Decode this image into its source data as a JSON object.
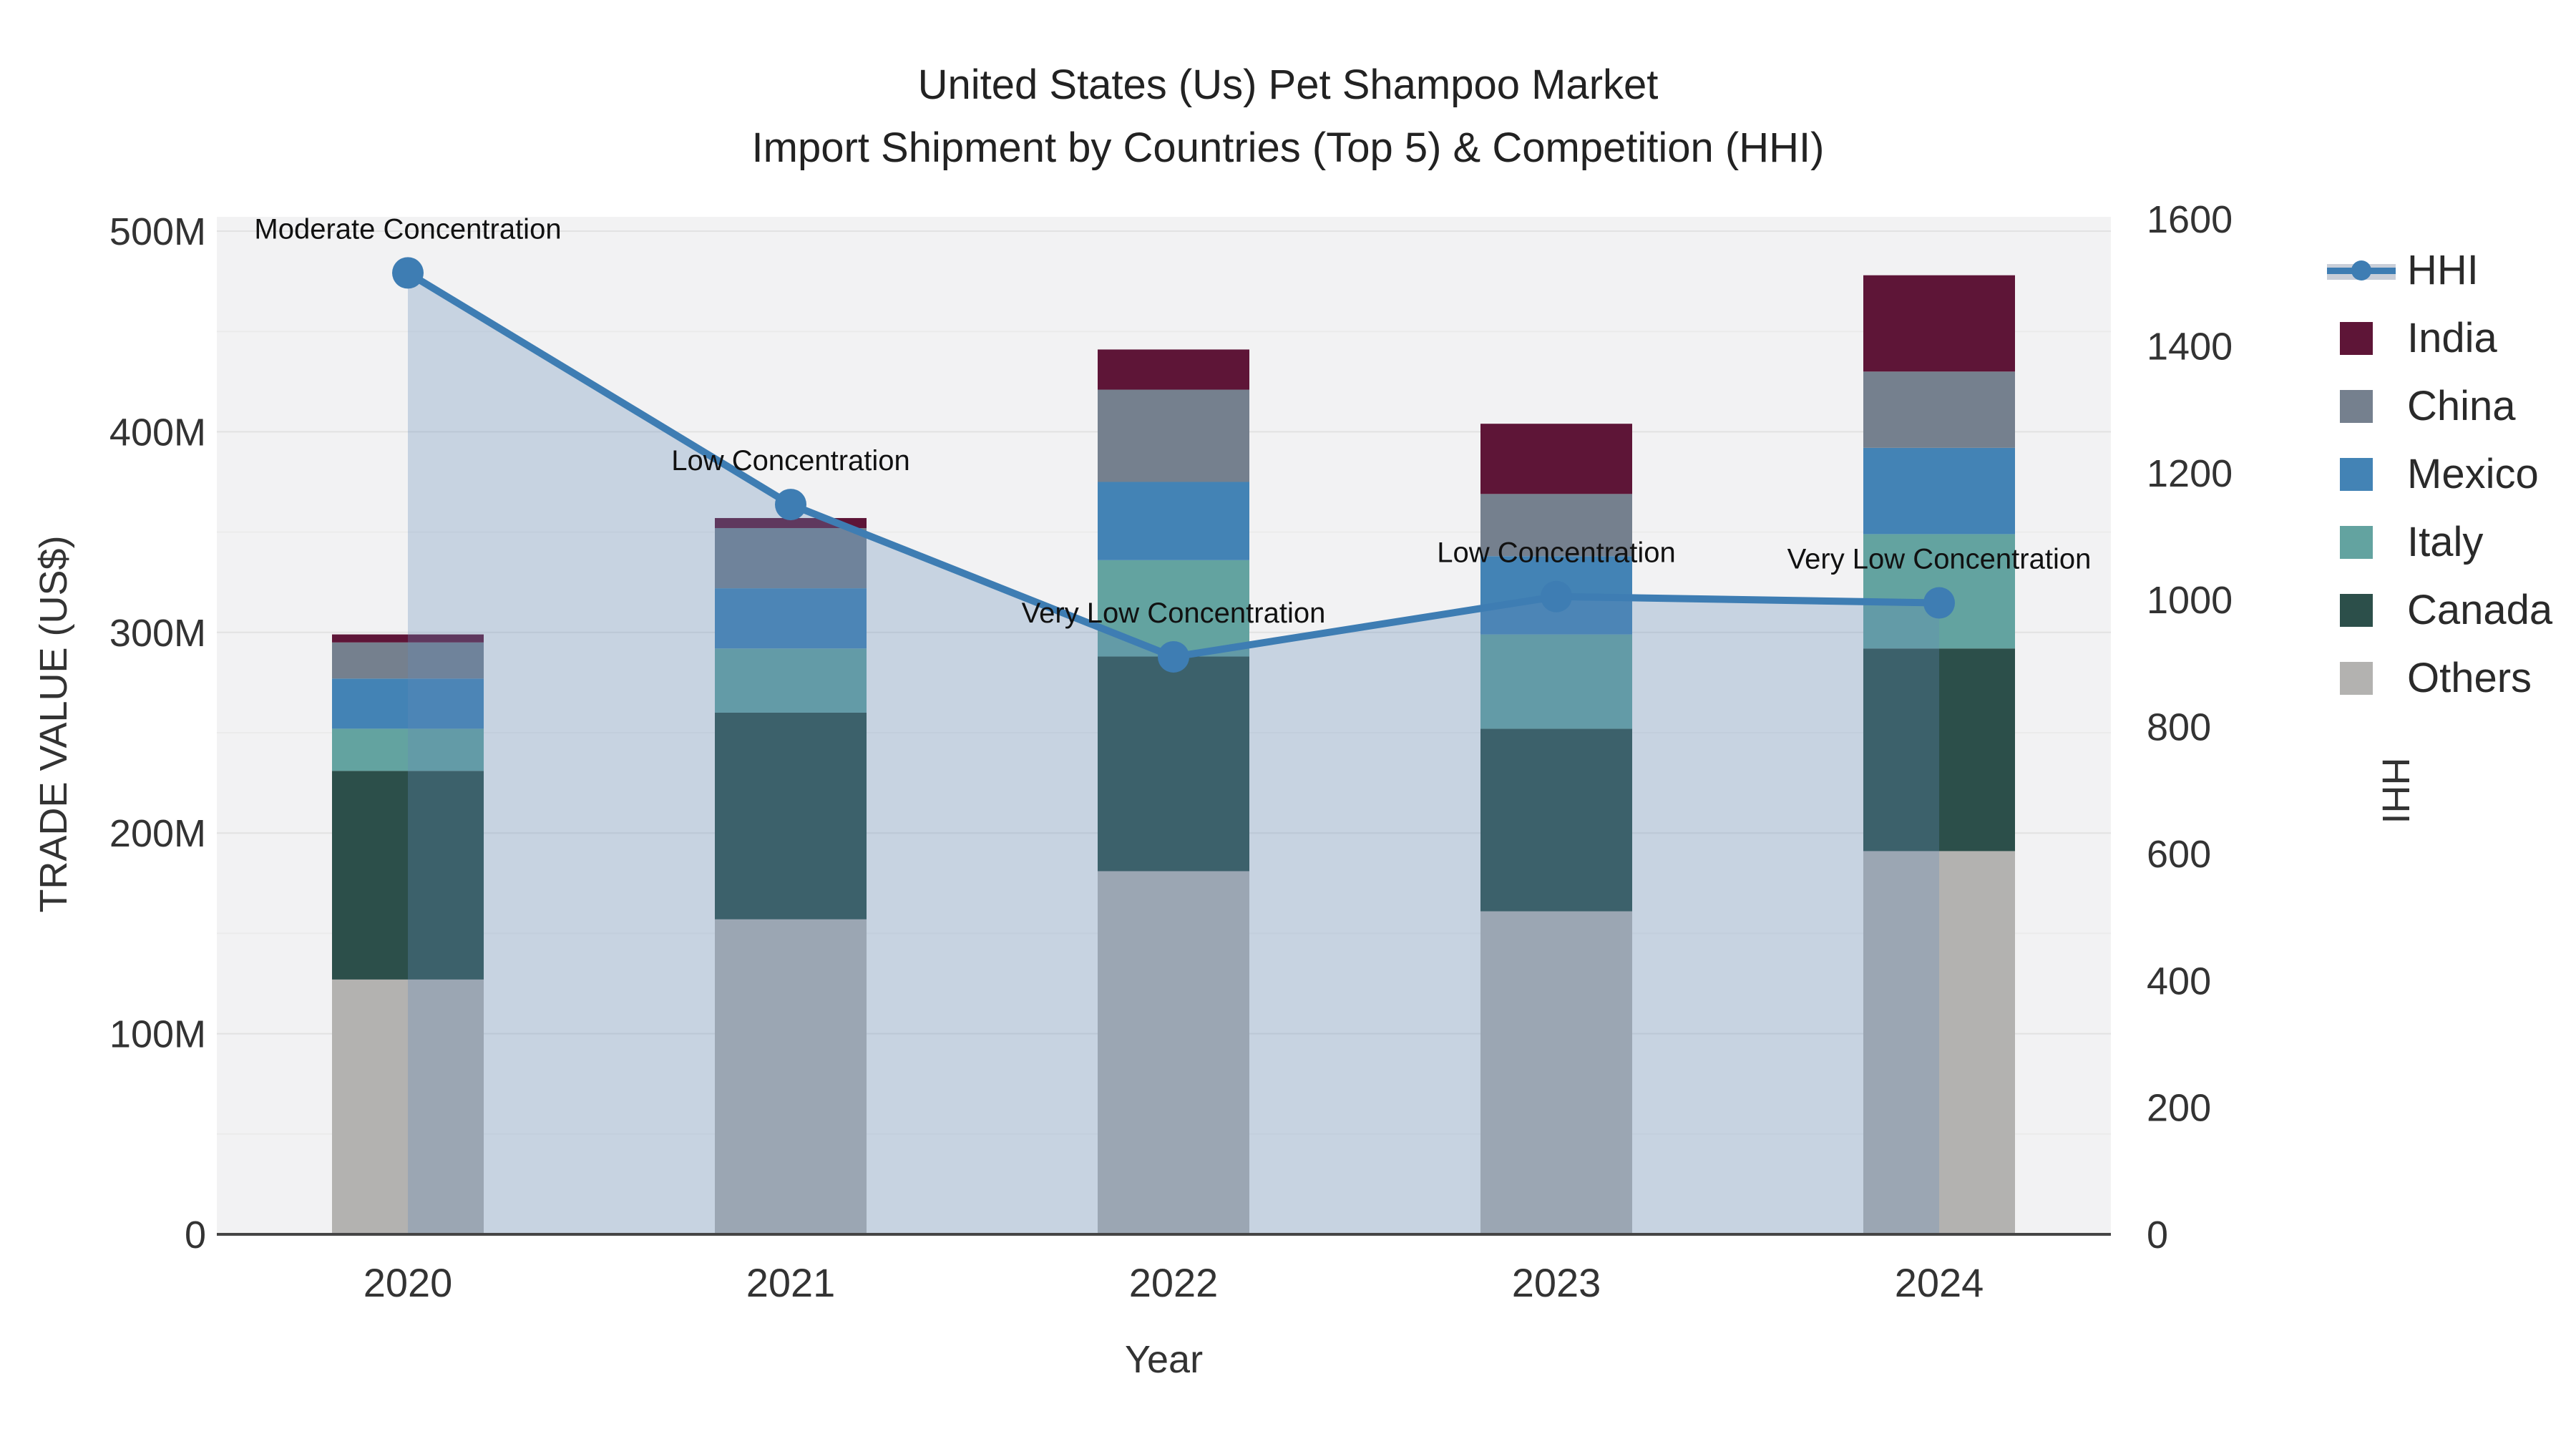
{
  "title": {
    "line1": "United States (Us) Pet Shampoo Market",
    "line2": "Import Shipment by Countries (Top 5) & Competition (HHI)"
  },
  "axes": {
    "y_left": {
      "title": "TRADE VALUE (US$)",
      "ticks": [
        "0",
        "100M",
        "200M",
        "300M",
        "400M",
        "500M"
      ],
      "tick_values_m": [
        0,
        100,
        200,
        300,
        400,
        500
      ],
      "range_m": [
        0,
        500
      ]
    },
    "y_right": {
      "title": "HHI",
      "ticks": [
        "0",
        "200",
        "400",
        "600",
        "800",
        "1000",
        "1200",
        "1400",
        "1600"
      ],
      "tick_values": [
        0,
        200,
        400,
        600,
        800,
        1000,
        1200,
        1400,
        1600
      ],
      "range": [
        0,
        1600
      ]
    },
    "x": {
      "title": "Year",
      "ticks": [
        "2020",
        "2021",
        "2022",
        "2023",
        "2024"
      ]
    }
  },
  "legend": {
    "items": [
      {
        "label": "HHI",
        "color": "#3e7db3",
        "band_color": "#c9ced8",
        "kind": "line"
      },
      {
        "label": "India",
        "color": "#5e1537",
        "kind": "square"
      },
      {
        "label": "China",
        "color": "#75808e",
        "kind": "square"
      },
      {
        "label": "Mexico",
        "color": "#4383b5",
        "kind": "square"
      },
      {
        "label": "Italy",
        "color": "#63a3a0",
        "kind": "square"
      },
      {
        "label": "Canada",
        "color": "#2c4f4a",
        "kind": "square"
      },
      {
        "label": "Others",
        "color": "#b3b2b0",
        "kind": "square"
      }
    ]
  },
  "chart_data": {
    "type": "bar",
    "subtype": "stacked-bars-with-line",
    "categories": [
      "2020",
      "2021",
      "2022",
      "2023",
      "2024"
    ],
    "series": [
      {
        "name": "Others",
        "type": "bar",
        "color": "#b3b2b0",
        "values": [
          127,
          157,
          181,
          161,
          191
        ]
      },
      {
        "name": "Canada",
        "type": "bar",
        "color": "#2c4f4a",
        "values": [
          104,
          103,
          107,
          91,
          101
        ]
      },
      {
        "name": "Italy",
        "type": "bar",
        "color": "#63a3a0",
        "values": [
          21,
          32,
          48,
          47,
          57
        ]
      },
      {
        "name": "Mexico",
        "type": "bar",
        "color": "#4383b5",
        "values": [
          25,
          30,
          39,
          39,
          43
        ]
      },
      {
        "name": "China",
        "type": "bar",
        "color": "#75808e",
        "values": [
          18,
          30,
          46,
          31,
          38
        ]
      },
      {
        "name": "India",
        "type": "bar",
        "color": "#5e1537",
        "values": [
          4,
          5,
          20,
          35,
          48
        ]
      }
    ],
    "bar_totals_m": [
      299,
      357,
      441,
      404,
      478
    ],
    "line": {
      "name": "HHI",
      "axis": "right",
      "color": "#3e7db3",
      "area_fill": "rgba(100,140,185,0.30)",
      "values": [
        1515,
        1150,
        910,
        1005,
        995
      ]
    },
    "annotations": [
      {
        "category": "2020",
        "text": "Moderate Concentration"
      },
      {
        "category": "2021",
        "text": "Low Concentration"
      },
      {
        "category": "2022",
        "text": "Very Low Concentration"
      },
      {
        "category": "2023",
        "text": "Low Concentration"
      },
      {
        "category": "2024",
        "text": "Very Low Concentration"
      }
    ],
    "title": "United States (Us) Pet Shampoo Market — Import Shipment by Countries (Top 5) & Competition (HHI)",
    "xlabel": "Year",
    "ylabel_left": "TRADE VALUE (US$)",
    "ylabel_right": "HHI",
    "units_bars": "million US$",
    "ylim_left_m": [
      0,
      500
    ],
    "ylim_right": [
      0,
      1600
    ],
    "grid": true,
    "legend_position": "right",
    "plot_bg": "#f2f2f3",
    "grid_major_color": "#e2e2e2",
    "grid_minor_color": "#ebebeb",
    "axis_line_color": "#454545",
    "tick_text_color": "#333333"
  }
}
